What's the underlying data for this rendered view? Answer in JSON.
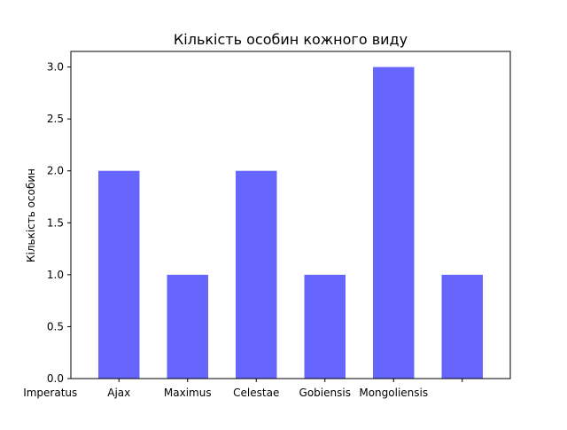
{
  "chart_data": {
    "type": "bar",
    "title": "Кількість особин кожного виду",
    "xlabel": "",
    "ylabel": "Кількість особин",
    "ylim": [
      0,
      3.15
    ],
    "yticks": [
      "0.0",
      "0.5",
      "1.0",
      "1.5",
      "2.0",
      "2.5",
      "3.0"
    ],
    "xtick_labels": [
      "Imperatus",
      "Ajax",
      "Maximus",
      "Celestae",
      "Gobiensis",
      "Mongoliensis",
      ""
    ],
    "values": [
      2,
      1,
      2,
      1,
      3,
      1
    ],
    "grid": false,
    "bar_color": "#6666ff"
  }
}
